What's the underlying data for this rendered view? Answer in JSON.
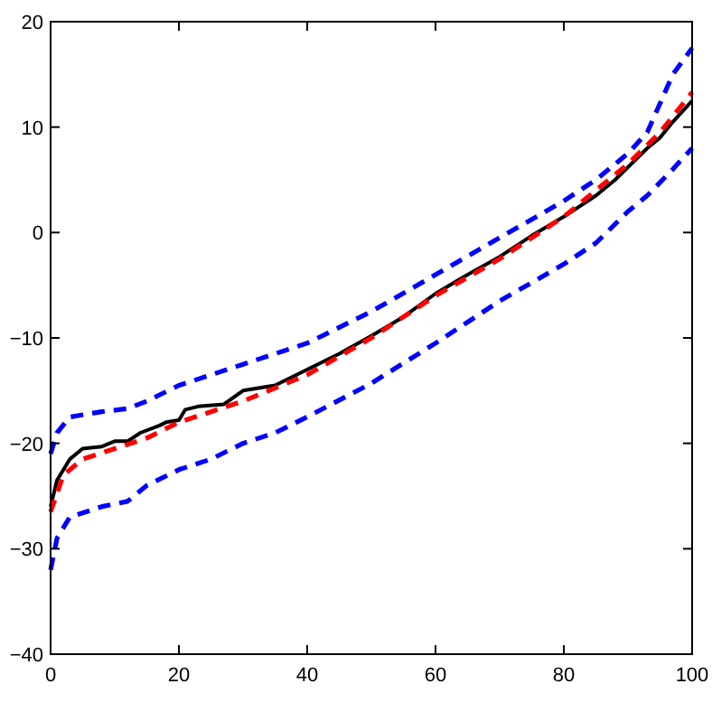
{
  "chart_data": {
    "type": "line",
    "xlim": [
      0,
      100
    ],
    "ylim": [
      -40,
      20
    ],
    "xticks": [
      0,
      20,
      40,
      60,
      80,
      100
    ],
    "yticks": [
      -40,
      -30,
      -20,
      -10,
      0,
      10,
      20
    ],
    "grid": false,
    "series": [
      {
        "color": "#0000ff",
        "line_style": "dashed",
        "x": [
          0,
          1,
          3,
          8,
          12,
          15,
          20,
          25,
          30,
          35,
          40,
          50,
          60,
          70,
          80,
          85,
          90,
          93,
          97,
          100
        ],
        "values": [
          -21,
          -19,
          -17.5,
          -17,
          -16.7,
          -16,
          -14.5,
          -13.5,
          -12.5,
          -11.5,
          -10.5,
          -7.5,
          -4,
          -0.5,
          3,
          5,
          7.5,
          9.5,
          15,
          17.5
        ]
      },
      {
        "color": "#0000ff",
        "line_style": "dashed",
        "x": [
          0,
          1,
          3,
          8,
          12,
          15,
          20,
          25,
          30,
          35,
          40,
          50,
          60,
          70,
          80,
          85,
          90,
          93,
          97,
          100
        ],
        "values": [
          -32,
          -29,
          -27,
          -26,
          -25.5,
          -24,
          -22.5,
          -21.5,
          -20,
          -19,
          -17.5,
          -14.3,
          -10.5,
          -6.5,
          -3,
          -1,
          2,
          3.5,
          6,
          8
        ]
      },
      {
        "color": "#000000",
        "line_style": "solid",
        "x": [
          0,
          1,
          3,
          5,
          8,
          10,
          12,
          14,
          17,
          18,
          20,
          21,
          23,
          27,
          30,
          35,
          40,
          45,
          50,
          55,
          60,
          65,
          70,
          75,
          80,
          85,
          88,
          90,
          93,
          95,
          97,
          100
        ],
        "values": [
          -26,
          -23.5,
          -21.5,
          -20.5,
          -20.3,
          -19.8,
          -19.8,
          -19,
          -18.3,
          -18,
          -17.8,
          -16.8,
          -16.5,
          -16.3,
          -15,
          -14.5,
          -13,
          -11.5,
          -9.8,
          -8,
          -5.8,
          -4,
          -2.3,
          -0.3,
          1.5,
          3.5,
          5,
          6.2,
          8,
          9,
          10.5,
          12.5
        ]
      },
      {
        "color": "#ff0000",
        "line_style": "dashed",
        "x": [
          0,
          2,
          5,
          10,
          15,
          20,
          25,
          30,
          40,
          50,
          60,
          70,
          80,
          90,
          95,
          100
        ],
        "values": [
          -26.5,
          -23,
          -21.5,
          -20.5,
          -19.5,
          -18,
          -17,
          -16,
          -13.5,
          -10,
          -6,
          -2.5,
          1.5,
          6.5,
          9.5,
          13.3
        ]
      }
    ]
  }
}
